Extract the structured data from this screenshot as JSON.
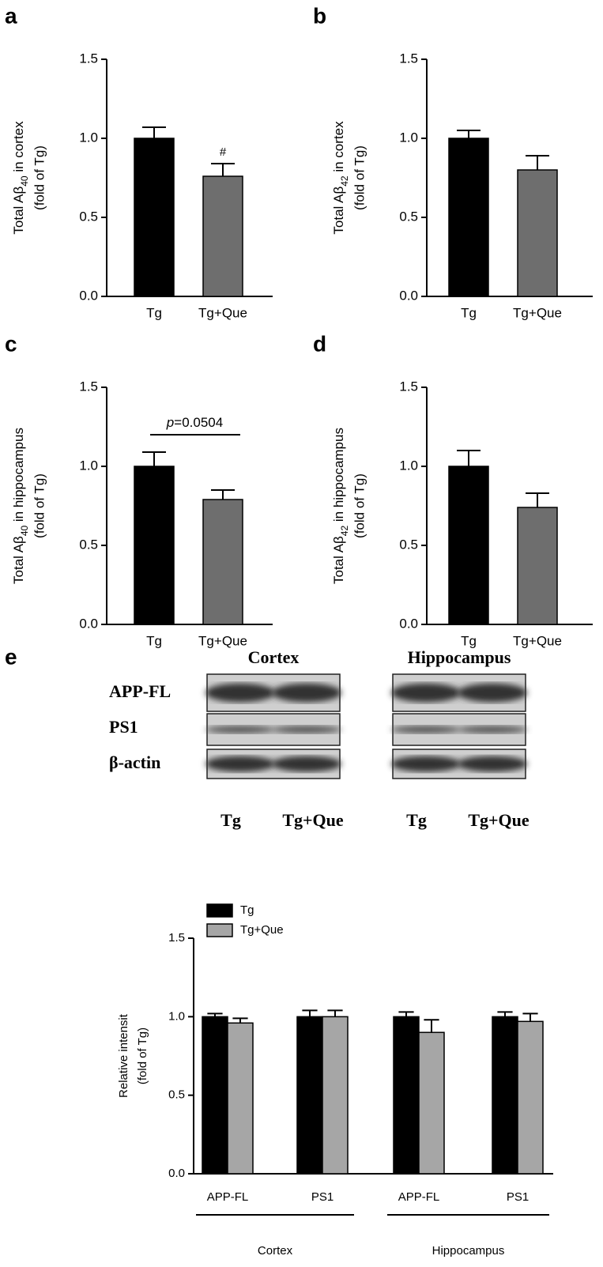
{
  "chart_data": [
    {
      "type": "bar",
      "panel": "a",
      "ylabel": {
        "text": "Total Aβ",
        "subscript": "40",
        "suffix": " in cortex"
      },
      "ylabel_line2": "(fold of Tg)",
      "categories": [
        "Tg",
        "Tg+Que"
      ],
      "values": [
        1.0,
        0.76
      ],
      "errors": [
        0.07,
        0.08
      ],
      "colors": [
        "#000000",
        "#6e6e6e"
      ],
      "annotation": "#",
      "ylim": [
        0,
        1.5
      ],
      "yticks": [
        {
          "value": 0,
          "label": "0.0"
        },
        {
          "value": 0.5,
          "label": "0.5"
        },
        {
          "value": 1,
          "label": "1.0"
        },
        {
          "value": 1.5,
          "label": "1.5"
        }
      ]
    },
    {
      "type": "bar",
      "panel": "b",
      "ylabel": {
        "text": "Total Aβ",
        "subscript": "42",
        "suffix": " in cortex"
      },
      "ylabel_line2": "(fold of Tg)",
      "categories": [
        "Tg",
        "Tg+Que"
      ],
      "values": [
        1.0,
        0.8
      ],
      "errors": [
        0.05,
        0.09
      ],
      "colors": [
        "#000000",
        "#6e6e6e"
      ],
      "ylim": [
        0,
        1.5
      ],
      "yticks": [
        {
          "value": 0,
          "label": "0.0"
        },
        {
          "value": 0.5,
          "label": "0.5"
        },
        {
          "value": 1,
          "label": "1.0"
        },
        {
          "value": 1.5,
          "label": "1.5"
        }
      ]
    },
    {
      "type": "bar",
      "panel": "c",
      "ylabel": {
        "text": "Total Aβ",
        "subscript": "40",
        "suffix": " in hippocampus"
      },
      "ylabel_line2": "(fold of Tg)",
      "categories": [
        "Tg",
        "Tg+Que"
      ],
      "values": [
        1.0,
        0.79
      ],
      "errors": [
        0.09,
        0.06
      ],
      "colors": [
        "#000000",
        "#6e6e6e"
      ],
      "pvalue": {
        "symbol": "p",
        "text": "=0.0504"
      },
      "ylim": [
        0,
        1.5
      ],
      "yticks": [
        {
          "value": 0,
          "label": "0.0"
        },
        {
          "value": 0.5,
          "label": "0.5"
        },
        {
          "value": 1,
          "label": "1.0"
        },
        {
          "value": 1.5,
          "label": "1.5"
        }
      ]
    },
    {
      "type": "bar",
      "panel": "d",
      "ylabel": {
        "text": "Total Aβ",
        "subscript": "42",
        "suffix": " in hippocampus"
      },
      "ylabel_line2": "(fold of Tg)",
      "categories": [
        "Tg",
        "Tg+Que"
      ],
      "values": [
        1.0,
        0.74
      ],
      "errors": [
        0.1,
        0.09
      ],
      "colors": [
        "#000000",
        "#6e6e6e"
      ],
      "ylim": [
        0,
        1.5
      ],
      "yticks": [
        {
          "value": 0,
          "label": "0.0"
        },
        {
          "value": 0.5,
          "label": "0.5"
        },
        {
          "value": 1,
          "label": "1.0"
        },
        {
          "value": 1.5,
          "label": "1.5"
        }
      ]
    },
    {
      "type": "grouped-bar",
      "ylabel": {
        "text": "Relative intensit"
      },
      "ylabel_line2": "(fold of Tg)",
      "categories": [
        "APP-FL",
        "PS1",
        "APP-FL",
        "PS1"
      ],
      "groups": [
        "Cortex",
        "Hippocampus"
      ],
      "series": [
        {
          "name": "Tg",
          "color": "#000000",
          "values": [
            1.0,
            1.0,
            1.0,
            1.0
          ],
          "errors": [
            0.02,
            0.04,
            0.03,
            0.03
          ]
        },
        {
          "name": "Tg+Que",
          "color": "#a6a6a6",
          "values": [
            0.96,
            1.0,
            0.9,
            0.97
          ],
          "errors": [
            0.03,
            0.04,
            0.08,
            0.05
          ]
        }
      ],
      "legend": "top-left",
      "ylim": [
        0,
        1.5
      ],
      "yticks": [
        {
          "value": 0,
          "label": "0.0"
        },
        {
          "value": 0.5,
          "label": "0.5"
        },
        {
          "value": 1,
          "label": "1.0"
        },
        {
          "value": 1.5,
          "label": "1.5"
        }
      ]
    }
  ],
  "blot": {
    "panel": "e",
    "regions": [
      "Cortex",
      "Hippocampus"
    ],
    "rows": [
      "APP-FL",
      "PS1",
      "β-actin"
    ],
    "lanes": [
      "Tg",
      "Tg+Que"
    ]
  }
}
